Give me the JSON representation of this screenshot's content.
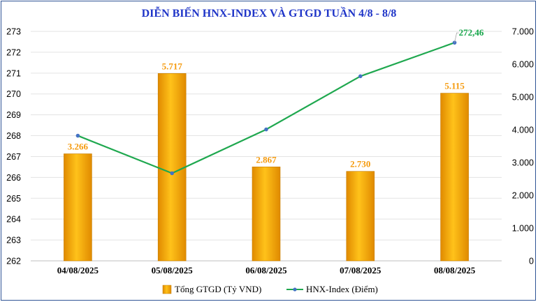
{
  "chart_data": {
    "type": "bar+line",
    "title": "DIỄN BIẾN HNX-INDEX VÀ GTGD TUẦN 4/8 - 8/8",
    "categories": [
      "04/08/2025",
      "05/08/2025",
      "06/08/2025",
      "07/08/2025",
      "08/08/2025"
    ],
    "bar_series": {
      "name": "Tổng GTGD (Tỷ VND)",
      "values": [
        3266,
        5717,
        2867,
        2730,
        5115
      ],
      "labels": [
        "3.266",
        "5.717",
        "2.867",
        "2.730",
        "5.115"
      ],
      "axis": "right",
      "color": "#f5a50c"
    },
    "line_series": {
      "name": "HNX-Index (Điểm)",
      "values": [
        268.0,
        266.2,
        268.3,
        270.85,
        272.46
      ],
      "last_label": "272,46",
      "axis": "left",
      "color": "#1fa84f",
      "marker_color": "#4472c4"
    },
    "left_axis": {
      "ylim": [
        262,
        273
      ],
      "ticks": [
        "262",
        "263",
        "264",
        "265",
        "266",
        "267",
        "268",
        "269",
        "270",
        "271",
        "272",
        "273"
      ]
    },
    "right_axis": {
      "ylim": [
        0,
        7000
      ],
      "tick_values": [
        0,
        1000,
        2000,
        3000,
        4000,
        5000,
        6000,
        7000
      ],
      "ticks": [
        "0",
        "1.000",
        "2.000",
        "3.000",
        "4.000",
        "5.000",
        "6.000",
        "7.000"
      ]
    },
    "grid": true,
    "legend_position": "bottom"
  }
}
